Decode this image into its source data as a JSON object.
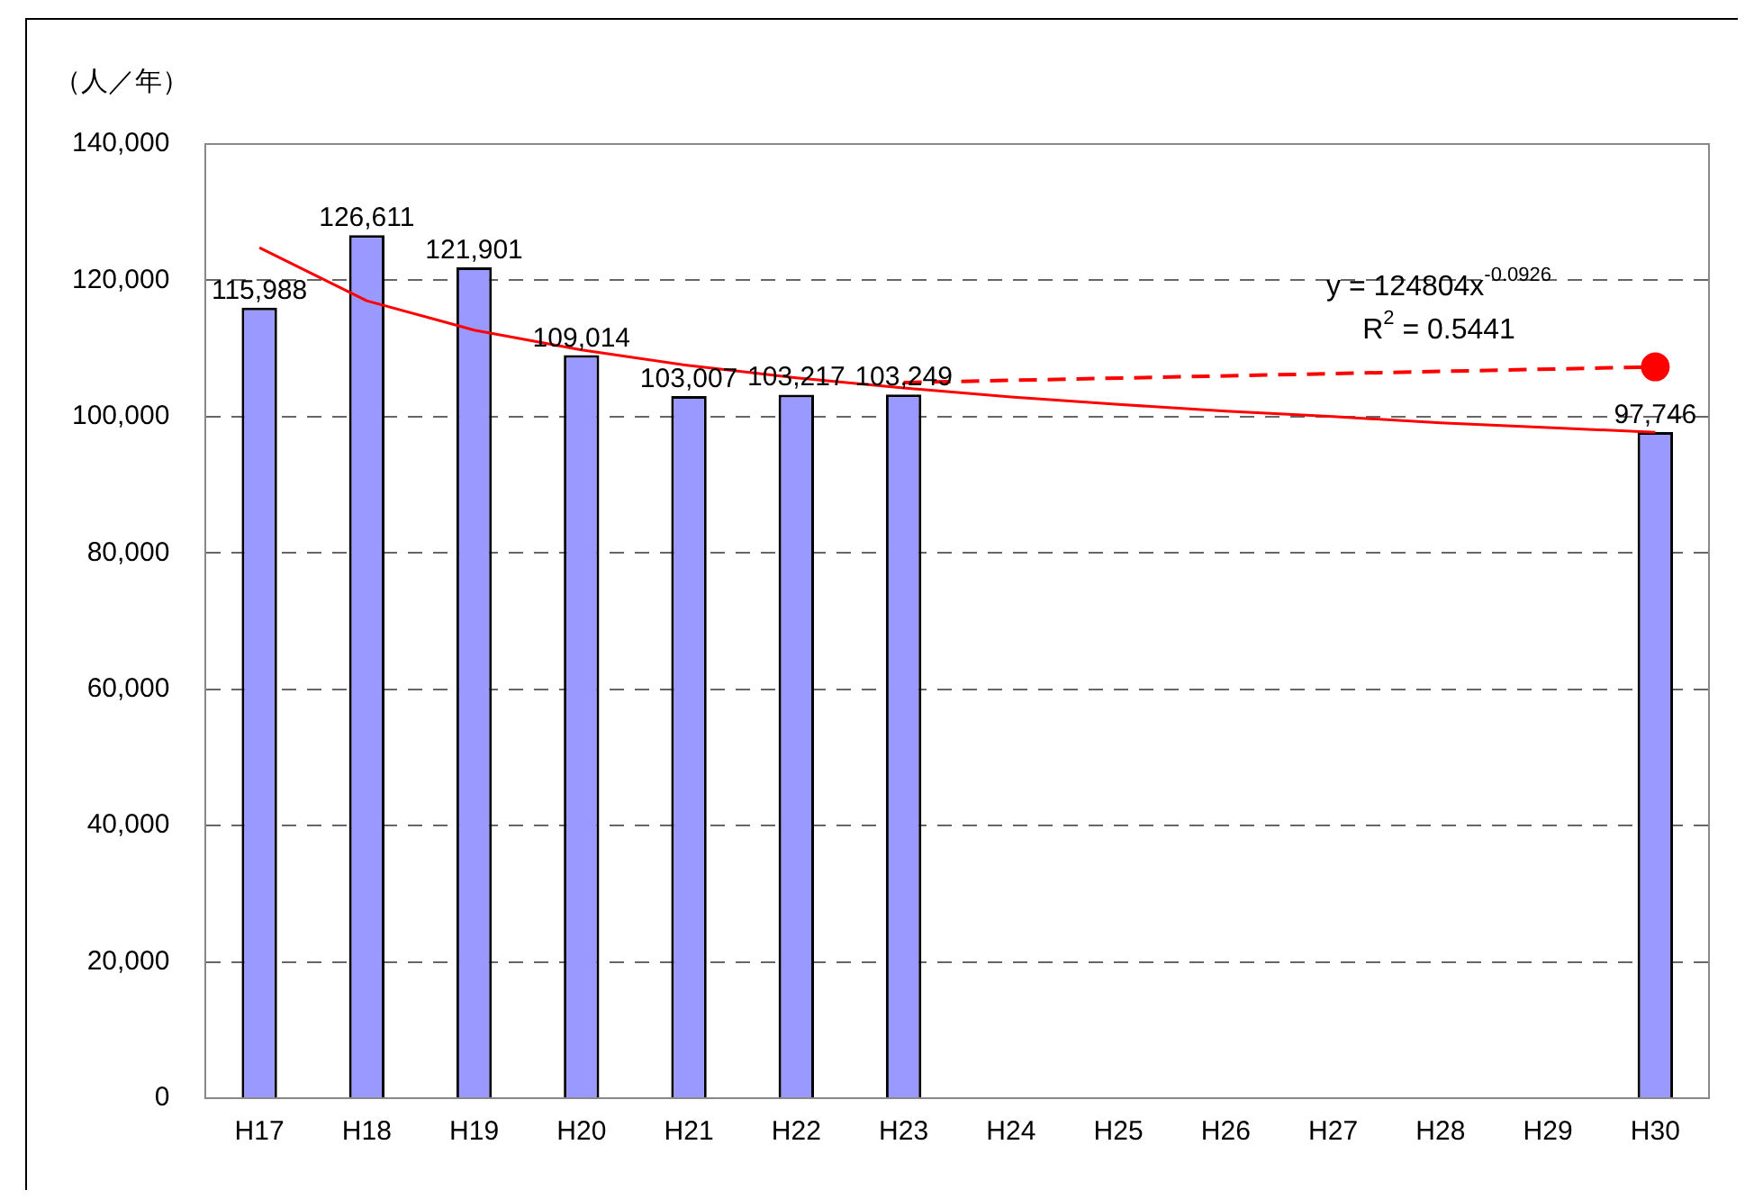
{
  "chart_data": {
    "type": "bar",
    "ylabel": "（人／年）",
    "categories": [
      "H17",
      "H18",
      "H19",
      "H20",
      "H21",
      "H22",
      "H23",
      "H24",
      "H25",
      "H26",
      "H27",
      "H28",
      "H29",
      "H30"
    ],
    "series": [
      {
        "color": "#9999ff",
        "values": [
          115988,
          126611,
          121901,
          109014,
          103007,
          103217,
          103249,
          null,
          null,
          null,
          null,
          null,
          null,
          97746
        ],
        "value_labels": [
          "115,988",
          "126,611",
          "121,901",
          "109,014",
          "103,007",
          "103,217",
          "103,249",
          null,
          null,
          null,
          null,
          null,
          null,
          "97,746"
        ]
      },
      {
        "type": "line",
        "color": "#ff0000",
        "line_style": "solid",
        "marker": "none",
        "values": [
          124800,
          117000,
          112700,
          109800,
          107500,
          105700,
          104200,
          102900,
          101800,
          100800,
          100000,
          99100,
          98400,
          97700
        ]
      },
      {
        "type": "line",
        "color": "#ff0000",
        "line_style": "dashed",
        "marker": "circle",
        "values": [
          null,
          null,
          null,
          null,
          null,
          null,
          105000,
          null,
          null,
          null,
          null,
          null,
          null,
          107300
        ]
      }
    ],
    "ylim": [
      0,
      140000
    ],
    "yticks": [
      {
        "value": 0,
        "label": "0"
      },
      {
        "value": 20000,
        "label": "20,000"
      },
      {
        "value": 40000,
        "label": "40,000"
      },
      {
        "value": 60000,
        "label": "60,000"
      },
      {
        "value": 80000,
        "label": "80,000"
      },
      {
        "value": 100000,
        "label": "100,000"
      },
      {
        "value": 120000,
        "label": "120,000"
      },
      {
        "value": 140000,
        "label": "140,000"
      }
    ],
    "grid": "y",
    "legend": false,
    "annotations": [
      "y = 124804x$^{-0.0926}$",
      "R$^{2}$ = 0.5441"
    ]
  }
}
